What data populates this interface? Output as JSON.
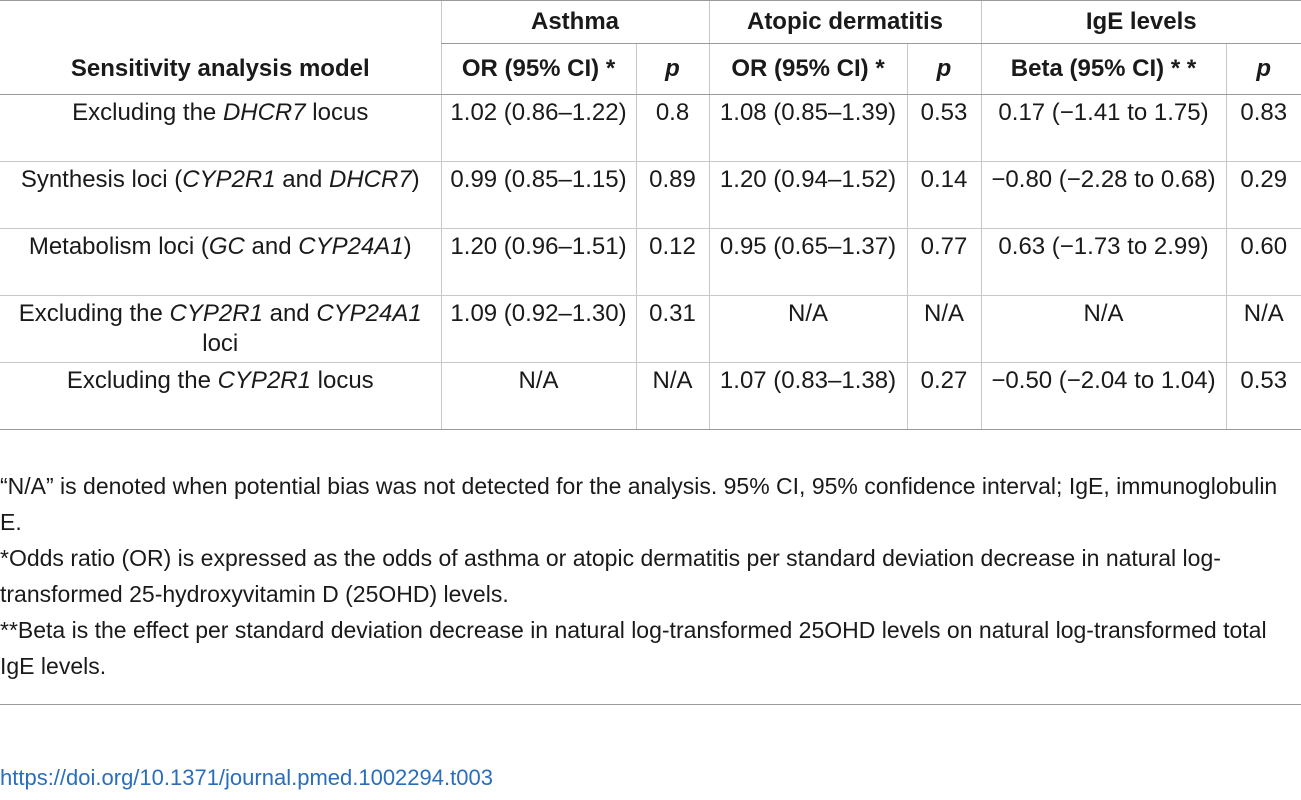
{
  "table": {
    "group_headers": {
      "asthma": "Asthma",
      "atopic": "Atopic dermatitis",
      "ige": "IgE levels"
    },
    "sub_headers": {
      "model": "Sensitivity analysis model",
      "or1": "OR (95% CI) *",
      "p1": "p",
      "or2": "OR (95% CI) *",
      "p2": "p",
      "beta": "Beta (95% CI) * *",
      "p3": "p"
    },
    "rows": [
      {
        "model": {
          "pre": "Excluding the ",
          "it1": "DHCR7",
          "mid": " locus",
          "it2": "",
          "post": ""
        },
        "or1": "1.02 (0.86–1.22)",
        "p1": "0.8",
        "or2": "1.08 (0.85–1.39)",
        "p2": "0.53",
        "beta": "0.17 (−1.41 to 1.75)",
        "p3": "0.83"
      },
      {
        "model": {
          "pre": "Synthesis loci (",
          "it1": "CYP2R1",
          "mid": " and ",
          "it2": "DHCR7",
          "post": ")"
        },
        "or1": "0.99 (0.85–1.15)",
        "p1": "0.89",
        "or2": "1.20 (0.94–1.52)",
        "p2": "0.14",
        "beta": "−0.80 (−2.28 to 0.68)",
        "p3": "0.29"
      },
      {
        "model": {
          "pre": "Metabolism loci (",
          "it1": "GC",
          "mid": " and ",
          "it2": "CYP24A1",
          "post": ")"
        },
        "or1": "1.20 (0.96–1.51)",
        "p1": "0.12",
        "or2": "0.95 (0.65–1.37)",
        "p2": "0.77",
        "beta": "0.63 (−1.73 to 2.99)",
        "p3": "0.60"
      },
      {
        "model": {
          "pre": "Excluding the ",
          "it1": "CYP2R1",
          "mid": " and ",
          "it2": "CYP24A1",
          "post": " loci"
        },
        "or1": "1.09 (0.92–1.30)",
        "p1": "0.31",
        "or2": "N/A",
        "p2": "N/A",
        "beta": "N/A",
        "p3": "N/A"
      },
      {
        "model": {
          "pre": "Excluding the ",
          "it1": "CYP2R1",
          "mid": " locus",
          "it2": "",
          "post": ""
        },
        "or1": "N/A",
        "p1": "N/A",
        "or2": "1.07 (0.83–1.38)",
        "p2": "0.27",
        "beta": "−0.50 (−2.04 to 1.04)",
        "p3": "0.53"
      }
    ]
  },
  "footnotes": [
    "“N/A” is denoted when potential bias was not detected for the analysis. 95% CI, 95% confidence interval; IgE, immunoglobulin E.",
    "*Odds ratio (OR) is expressed as the odds of asthma or atopic dermatitis per standard deviation decrease in natural log-transformed 25-hydroxyvitamin D (25OHD) levels.",
    "**Beta is the effect per standard deviation decrease in natural log-transformed 25OHD levels on natural log-transformed total IgE levels."
  ],
  "doi": "https://doi.org/10.1371/journal.pmed.1002294.t003"
}
